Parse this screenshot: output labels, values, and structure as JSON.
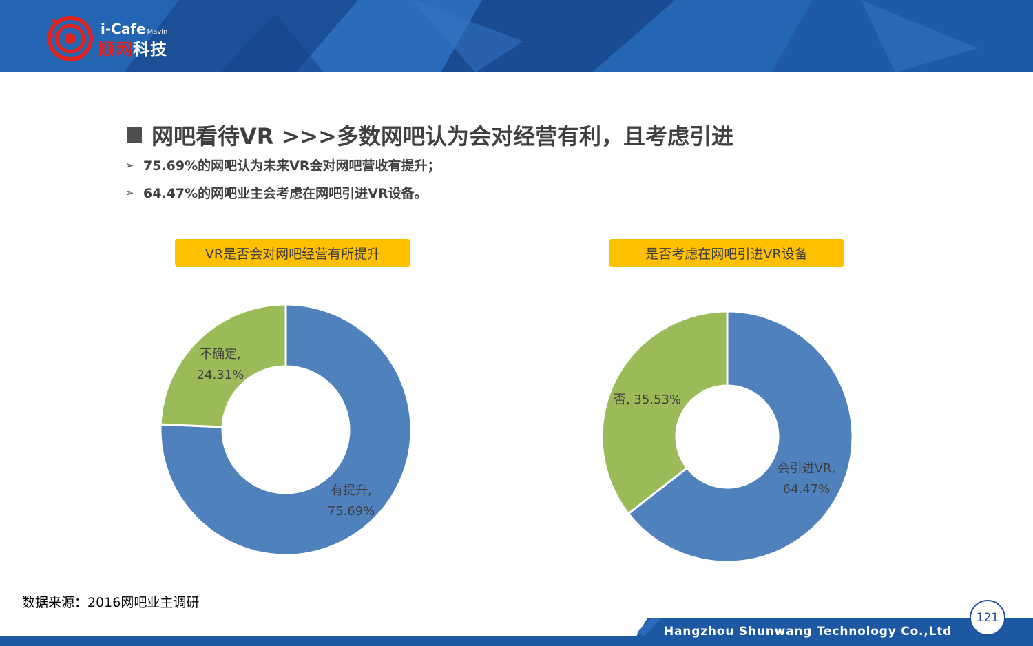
{
  "brand": {
    "logo_text_top": "i-Cafe",
    "logo_text_small": "Mavin",
    "logo_text_red": "顺网",
    "logo_text_white": "科技",
    "colors": {
      "header_blue": "#1f5aa6",
      "logo_red": "#e0201b",
      "accent": "#ffc000"
    }
  },
  "title": "网吧看待VR   >>>多数网吧认为会对经营有利，且考虑引进",
  "bullets": [
    "75.69%的网吧认为未来VR会对网吧营收有提升；",
    "64.47%的网吧业主会考虑在网吧引进VR设备。"
  ],
  "chart_data": [
    {
      "type": "pie",
      "title": "VR是否会对网吧经营有所提升",
      "categories": [
        "有提升",
        "不确定"
      ],
      "values": [
        75.69,
        24.31
      ],
      "labels": [
        {
          "name": "有提升,",
          "value": "75.69%"
        },
        {
          "name": "不确定,",
          "value": "24.31%"
        }
      ],
      "colors": [
        "#4f81bd",
        "#9bbb59"
      ],
      "donut": true
    },
    {
      "type": "pie",
      "title": "是否考虑在网吧引进VR设备",
      "categories": [
        "会引进VR",
        "否"
      ],
      "values": [
        64.47,
        35.53
      ],
      "labels": [
        {
          "name": "会引进VR,",
          "value": "64.47%"
        },
        {
          "name": "否, 35.53%",
          "value": ""
        }
      ],
      "colors": [
        "#4f81bd",
        "#9bbb59"
      ],
      "donut": true
    }
  ],
  "source": "数据来源：2016网吧业主调研",
  "footer": {
    "company": "Hangzhou Shunwang Technology Co.,Ltd",
    "page_number": "121"
  }
}
